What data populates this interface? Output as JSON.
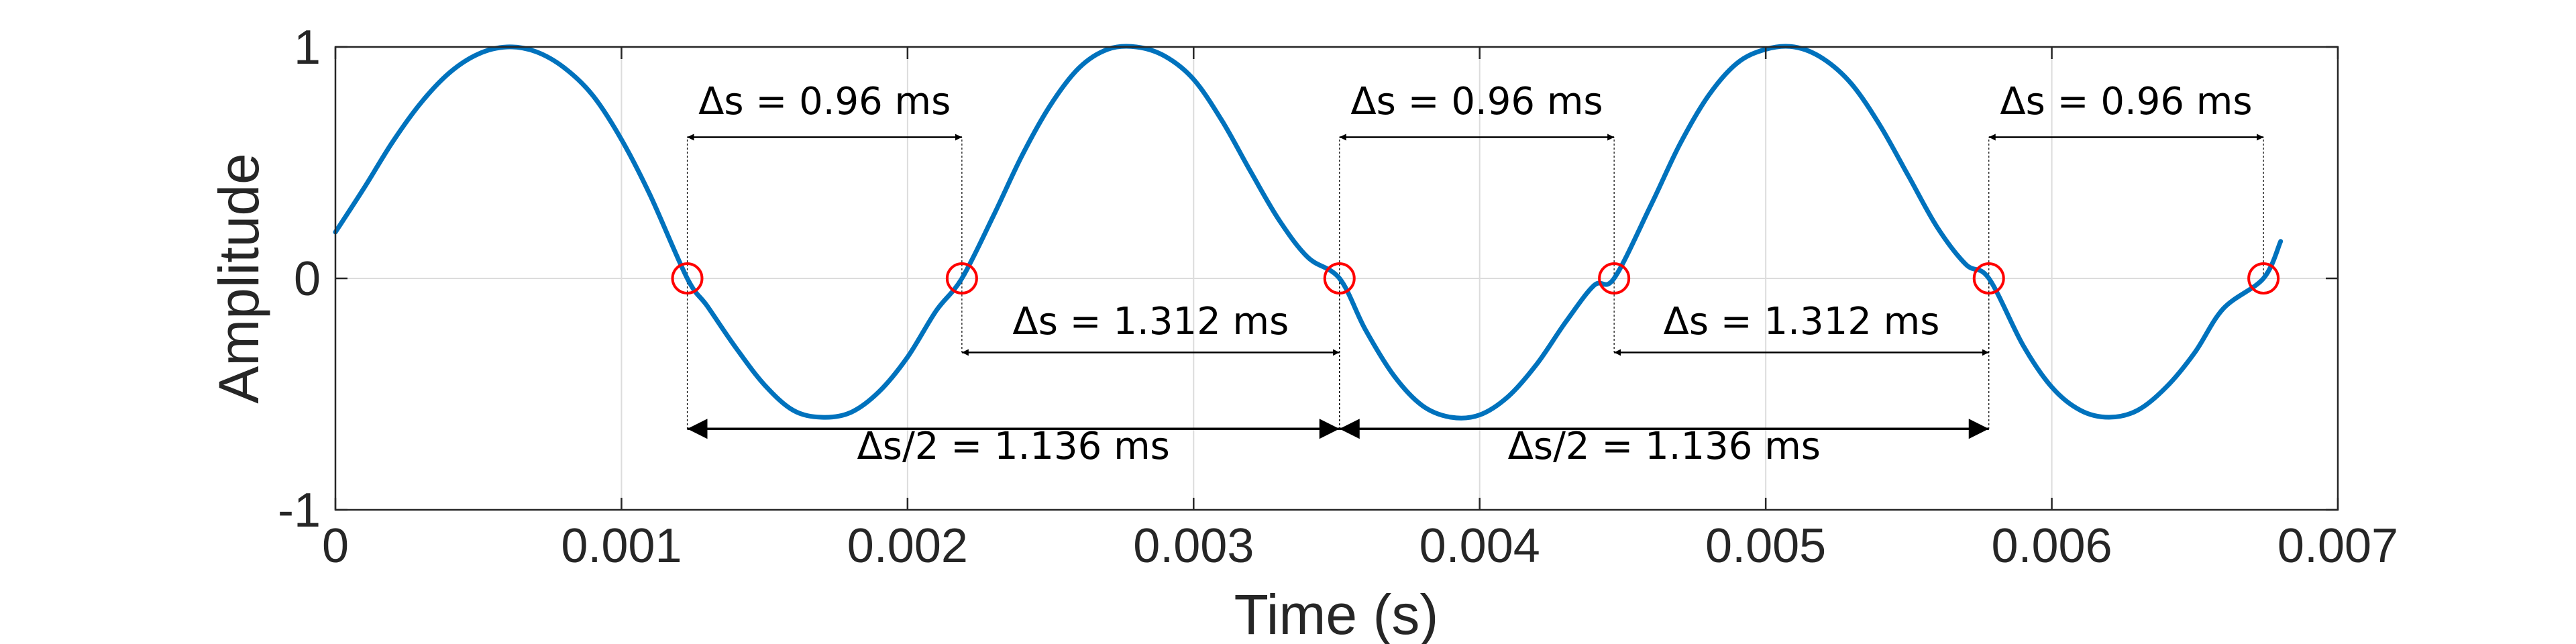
{
  "chart_data": {
    "type": "line",
    "title": "",
    "xlabel": "Time (s)",
    "ylabel": "Amplitude",
    "xlim": [
      0,
      0.007
    ],
    "ylim": [
      -1,
      1
    ],
    "xticks": [
      0,
      0.001,
      0.002,
      0.003,
      0.004,
      0.005,
      0.006,
      0.007
    ],
    "xtick_labels": [
      "0",
      "0.001",
      "0.002",
      "0.003",
      "0.004",
      "0.005",
      "0.006",
      "0.007"
    ],
    "yticks": [
      -1,
      0,
      1
    ],
    "ytick_labels": [
      "-1",
      "0",
      "1"
    ],
    "grid": true,
    "line_color": "#0072BD",
    "marker_color": "#FF0000",
    "series": [
      {
        "x": [
          0,
          0.0001,
          0.0002,
          0.0003,
          0.0004,
          0.0005,
          0.0006,
          0.0007,
          0.0008,
          0.0009,
          0.001,
          0.0011,
          0.00123,
          0.0013,
          0.0014,
          0.0015,
          0.0016,
          0.0017,
          0.0018,
          0.0019,
          0.002,
          0.0021,
          0.00219,
          0.0023,
          0.0024,
          0.0025,
          0.0026,
          0.0027,
          0.0028,
          0.0029,
          0.003,
          0.0031,
          0.0032,
          0.0033,
          0.0034,
          0.00351,
          0.0036,
          0.0037,
          0.0038,
          0.0039,
          0.004,
          0.0041,
          0.0042,
          0.0043,
          0.0044,
          0.00447,
          0.0046,
          0.0047,
          0.0048,
          0.0049,
          0.005,
          0.0051,
          0.0052,
          0.0053,
          0.0054,
          0.0055,
          0.0056,
          0.0057,
          0.00578,
          0.0059,
          0.006,
          0.0061,
          0.0062,
          0.0063,
          0.0064,
          0.0065,
          0.0066,
          0.00674,
          0.0068
        ],
        "y": [
          0.2,
          0.39,
          0.59,
          0.76,
          0.89,
          0.97,
          1.0,
          0.98,
          0.91,
          0.79,
          0.6,
          0.36,
          0.0,
          -0.12,
          -0.3,
          -0.46,
          -0.57,
          -0.6,
          -0.58,
          -0.49,
          -0.34,
          -0.14,
          0.0,
          0.27,
          0.53,
          0.75,
          0.91,
          0.99,
          1.0,
          0.96,
          0.86,
          0.68,
          0.46,
          0.25,
          0.09,
          0.0,
          -0.22,
          -0.42,
          -0.55,
          -0.6,
          -0.59,
          -0.51,
          -0.37,
          -0.19,
          -0.03,
          0.0,
          0.32,
          0.58,
          0.79,
          0.93,
          0.99,
          1.0,
          0.95,
          0.84,
          0.66,
          0.44,
          0.22,
          0.06,
          0.0,
          -0.29,
          -0.47,
          -0.57,
          -0.6,
          -0.57,
          -0.47,
          -0.32,
          -0.13,
          0.0,
          0.16
        ]
      }
    ],
    "markers": {
      "x": [
        0.00123,
        0.00219,
        0.00351,
        0.00447,
        0.00578,
        0.00674
      ],
      "y": [
        0,
        0,
        0,
        0,
        0,
        0
      ]
    },
    "annotations": [
      {
        "x1": 0.00123,
        "x2": 0.00219,
        "y": 0.61,
        "label_y": 0.71,
        "text": "Δs = 0.96 ms",
        "from_y": 0
      },
      {
        "x1": 0.00351,
        "x2": 0.00447,
        "y": 0.61,
        "label_y": 0.71,
        "text": "Δs = 0.96 ms",
        "from_y": 0
      },
      {
        "x1": 0.00578,
        "x2": 0.00674,
        "y": 0.61,
        "label_y": 0.71,
        "text": "Δs = 0.96 ms",
        "from_y": 0
      },
      {
        "x1": 0.00219,
        "x2": 0.00351,
        "y": -0.32,
        "label_y": -0.24,
        "text": "Δs = 1.312 ms",
        "from_y": 0
      },
      {
        "x1": 0.00447,
        "x2": 0.00578,
        "y": -0.32,
        "label_y": -0.24,
        "text": "Δs = 1.312 ms",
        "from_y": 0
      },
      {
        "x1": 0.00123,
        "x2": 0.00351,
        "y": -0.65,
        "label_y": -0.78,
        "text": "Δs/2 = 1.136 ms",
        "from_y": 0
      },
      {
        "x1": 0.00351,
        "x2": 0.00578,
        "y": -0.65,
        "label_y": -0.78,
        "text": "Δs/2 = 1.136 ms",
        "from_y": 0
      }
    ]
  }
}
